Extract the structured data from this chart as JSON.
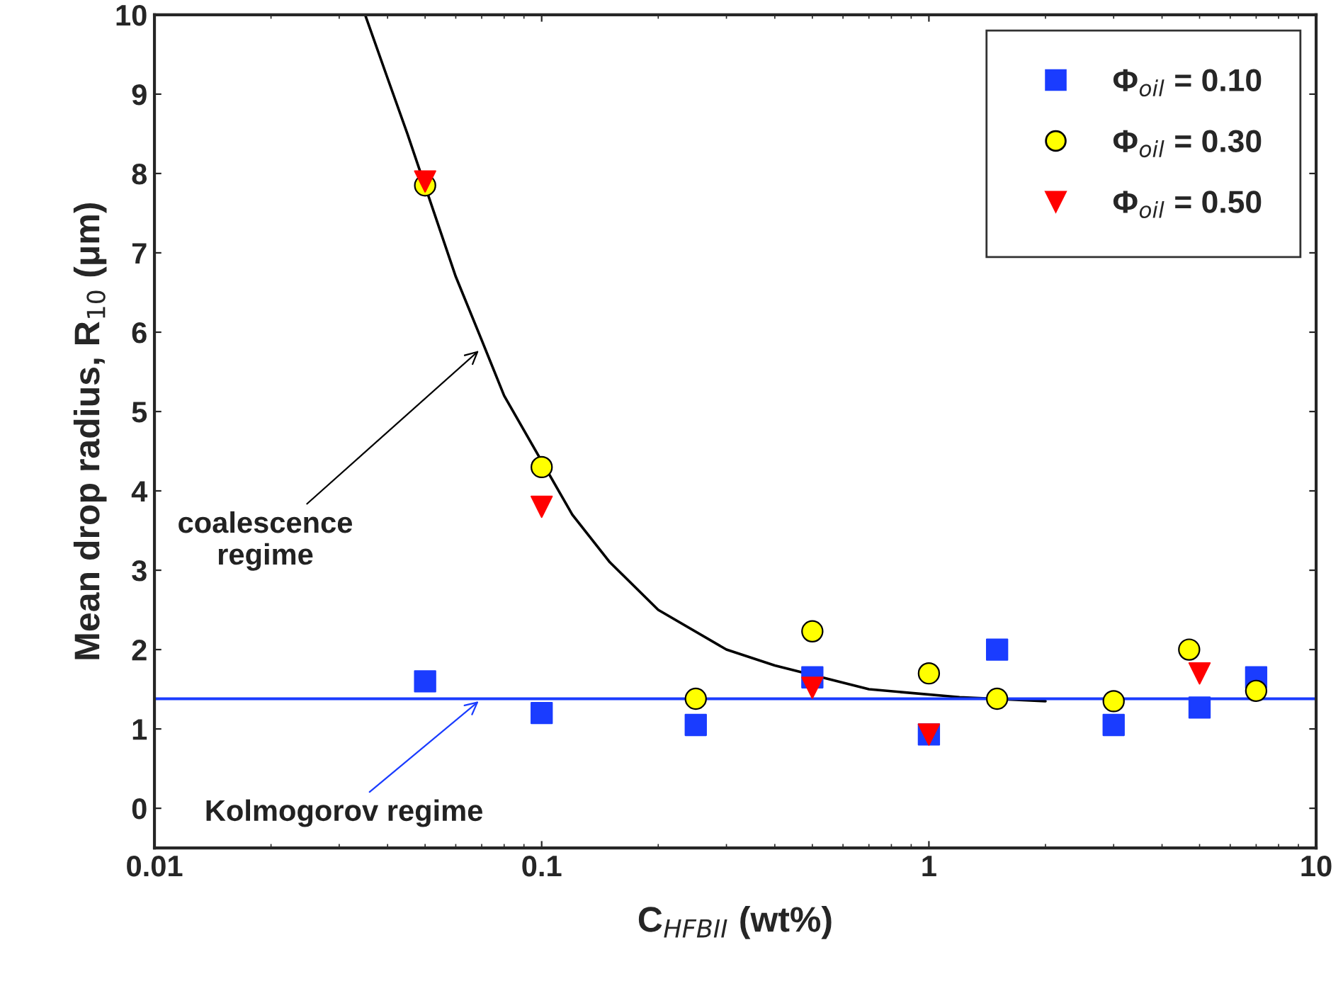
{
  "chart_data": {
    "type": "scatter",
    "xlabel": "C$_{HFBII}$ (wt%)",
    "ylabel": "Mean drop radius, R$_{10}$ (μm)",
    "log": "x",
    "xlim": [
      0.01,
      10
    ],
    "xticks": [
      0.01,
      0.1,
      1,
      10
    ],
    "ylim": [
      -0.5,
      10
    ],
    "yticks": [
      0,
      1,
      2,
      3,
      4,
      5,
      6,
      7,
      8,
      9,
      10
    ],
    "grid": false,
    "legend": "top right",
    "series": [
      {
        "name": "Φ$_{oil}$ = 0.10",
        "color": "#1a3cff",
        "marker": "square",
        "x": [
          0.05,
          0.1,
          0.25,
          0.5,
          1,
          1.5,
          3,
          5,
          7
        ],
        "values": [
          1.6,
          1.2,
          1.05,
          1.65,
          0.93,
          2.0,
          1.05,
          1.27,
          1.65
        ]
      },
      {
        "name": "Φ$_{oil}$ = 0.30",
        "color": "#ffff00",
        "marker": "circle",
        "x": [
          0.05,
          0.1,
          0.25,
          0.5,
          1,
          1.5,
          3,
          4.7,
          7
        ],
        "values": [
          7.85,
          4.3,
          1.38,
          2.23,
          1.7,
          1.38,
          1.35,
          2.0,
          1.48
        ]
      },
      {
        "name": "Φ$_{oil}$ = 0.50",
        "color": "#ff0000",
        "marker": "triangle",
        "x": [
          0.05,
          0.1,
          0.5,
          1,
          5
        ],
        "values": [
          7.9,
          3.8,
          1.52,
          0.93,
          1.7
        ]
      },
      {
        "type": "line",
        "color": "#000000",
        "marker": "none",
        "x": [
          0.035,
          0.04,
          0.045,
          0.06,
          0.07,
          0.08,
          0.12,
          0.15,
          0.2,
          0.3,
          0.4,
          0.7,
          1.2,
          2
        ],
        "values": [
          10,
          9.2,
          8.5,
          6.7,
          5.9,
          5.2,
          3.7,
          3.1,
          2.5,
          2.0,
          1.8,
          1.5,
          1.4,
          1.35
        ]
      }
    ],
    "ref_lines": [
      {
        "axis": "y",
        "value": 1.38,
        "color": "#1a3cff"
      }
    ],
    "annotations": [
      {
        "text": "coalescence\nregime",
        "x": 0.07,
        "y": 5.8
      },
      {
        "text": "Kolmogorov regime",
        "x": 0.07,
        "y": 1.38
      }
    ]
  }
}
